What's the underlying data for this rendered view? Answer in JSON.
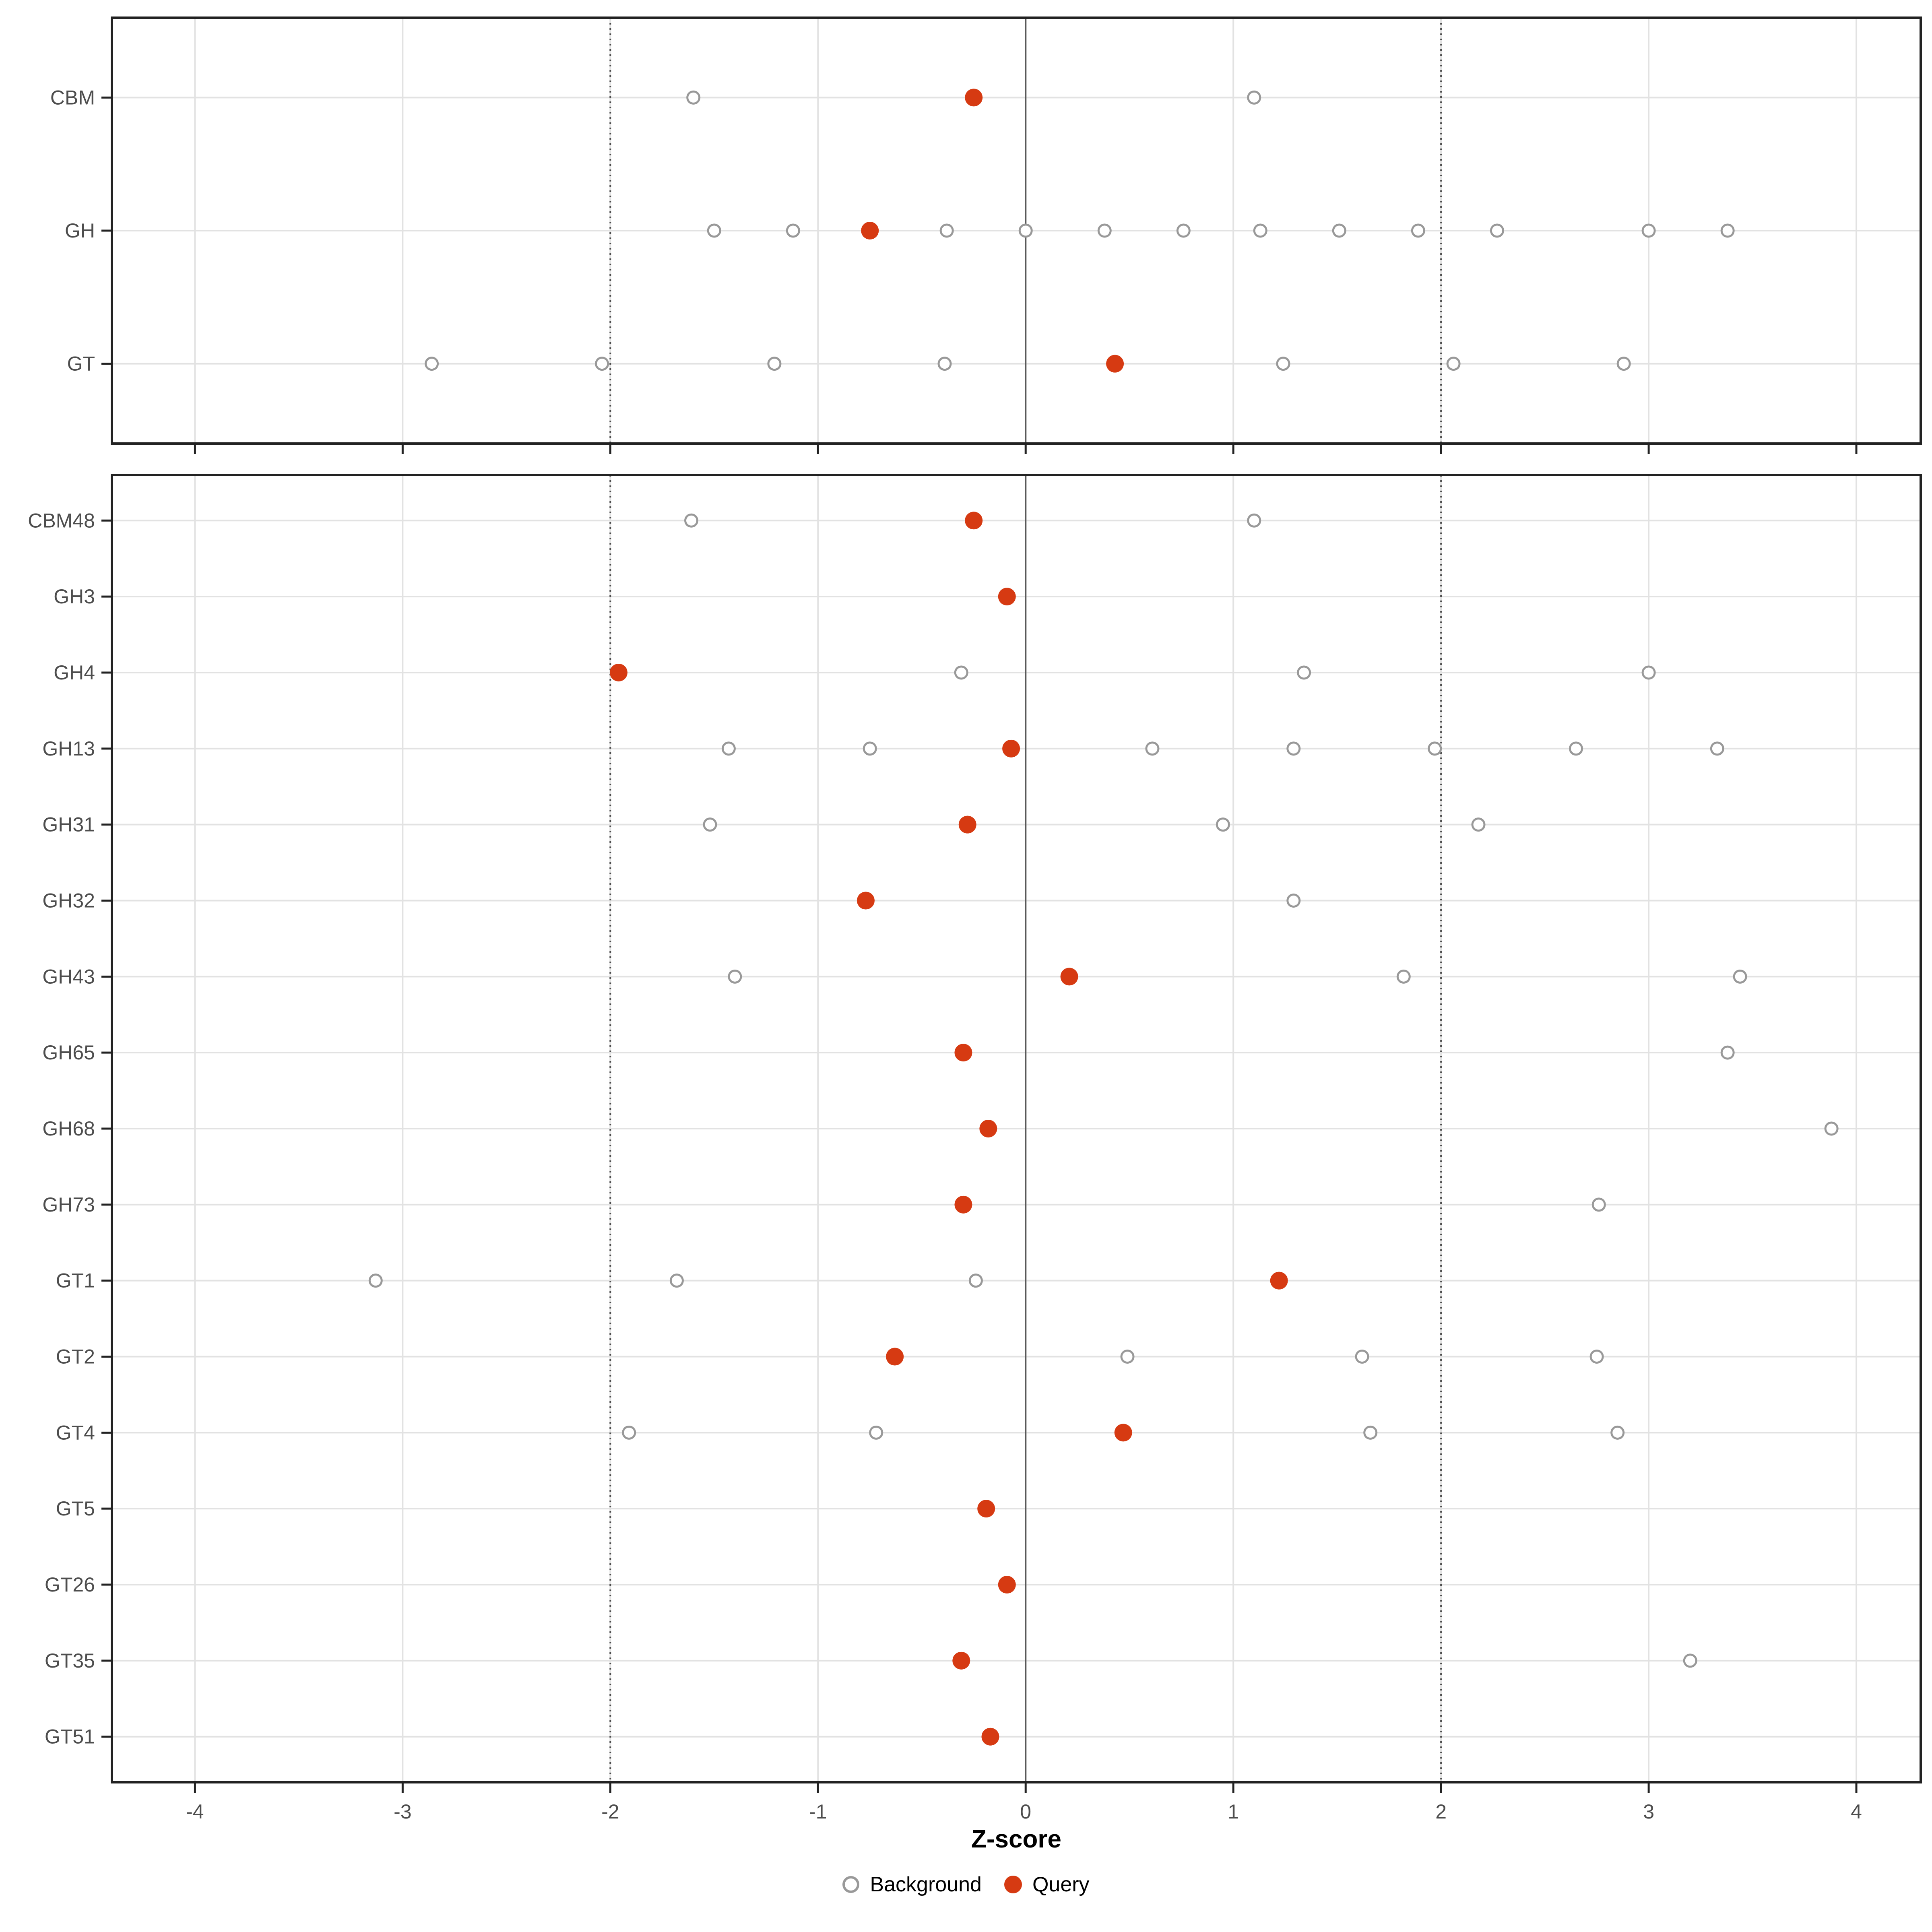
{
  "figure": {
    "background": "#ffffff"
  },
  "colors": {
    "query": "#d63a12",
    "background_stroke": "#999999",
    "background_fill": "#ffffff",
    "gridline": "#e2e2e2",
    "zero_line": "#595959",
    "dotted_line": "#4d4d4d",
    "panel_border": "#222222",
    "tick_mark": "#222222",
    "tick_label": "#4d4d4d",
    "category_label": "#4d4d4d"
  },
  "legend": {
    "items": [
      {
        "label": "Background",
        "type": "open"
      },
      {
        "label": "Query",
        "type": "filled"
      }
    ]
  },
  "chart_data": {
    "type": "scatter",
    "title": "",
    "xlabel": "Z-score",
    "ylabel": "",
    "xlim": [
      -4.4,
      4.31
    ],
    "x_ticks": [
      -4,
      -3,
      -2,
      -1,
      0,
      1,
      2,
      3,
      4
    ],
    "grid": "major-only",
    "legend_position": "bottom",
    "reference_lines": [
      {
        "x": 0,
        "style": "solid"
      },
      {
        "x": -2,
        "style": "dotted"
      },
      {
        "x": 2,
        "style": "dotted"
      }
    ],
    "panels": [
      {
        "name": "family-summary",
        "rows": [
          {
            "label": "CBM",
            "background": [
              -1.6,
              1.1
            ],
            "query": -0.25
          },
          {
            "label": "GH",
            "background": [
              -1.5,
              -1.12,
              -0.38,
              0.0,
              0.38,
              0.76,
              1.13,
              1.51,
              1.89,
              2.27,
              3.0,
              3.38
            ],
            "query": -0.75
          },
          {
            "label": "GT",
            "background": [
              -2.86,
              -2.04,
              -1.21,
              -0.39,
              1.24,
              2.06,
              2.88
            ],
            "query": 0.43
          }
        ]
      },
      {
        "name": "subfamily-detail",
        "rows": [
          {
            "label": "CBM48",
            "background": [
              -1.61,
              1.1
            ],
            "query": -0.25
          },
          {
            "label": "GH3",
            "background": [],
            "query": -0.09
          },
          {
            "label": "GH4",
            "background": [
              -0.31,
              1.34,
              3.0
            ],
            "query": -1.96
          },
          {
            "label": "GH13",
            "background": [
              -1.43,
              -0.75,
              0.61,
              1.29,
              1.97,
              2.65,
              3.33
            ],
            "query": -0.07
          },
          {
            "label": "GH31",
            "background": [
              -1.52,
              0.95,
              2.18
            ],
            "query": -0.28
          },
          {
            "label": "GH32",
            "background": [
              1.29
            ],
            "query": -0.77
          },
          {
            "label": "GH43",
            "background": [
              -1.4,
              1.82,
              3.44
            ],
            "query": 0.21
          },
          {
            "label": "GH65",
            "background": [
              3.38
            ],
            "query": -0.3
          },
          {
            "label": "GH68",
            "background": [
              3.88
            ],
            "query": -0.18
          },
          {
            "label": "GH73",
            "background": [
              2.76
            ],
            "query": -0.3
          },
          {
            "label": "GT1",
            "background": [
              -3.13,
              -1.68,
              -0.24
            ],
            "query": 1.22
          },
          {
            "label": "GT2",
            "background": [
              0.49,
              1.62,
              2.75
            ],
            "query": -0.63
          },
          {
            "label": "GT4",
            "background": [
              -1.91,
              -0.72,
              1.66,
              2.85
            ],
            "query": 0.47
          },
          {
            "label": "GT5",
            "background": [],
            "query": -0.19
          },
          {
            "label": "GT26",
            "background": [],
            "query": -0.09
          },
          {
            "label": "GT35",
            "background": [
              3.2
            ],
            "query": -0.31
          },
          {
            "label": "GT51",
            "background": [],
            "query": -0.17
          }
        ]
      }
    ]
  }
}
